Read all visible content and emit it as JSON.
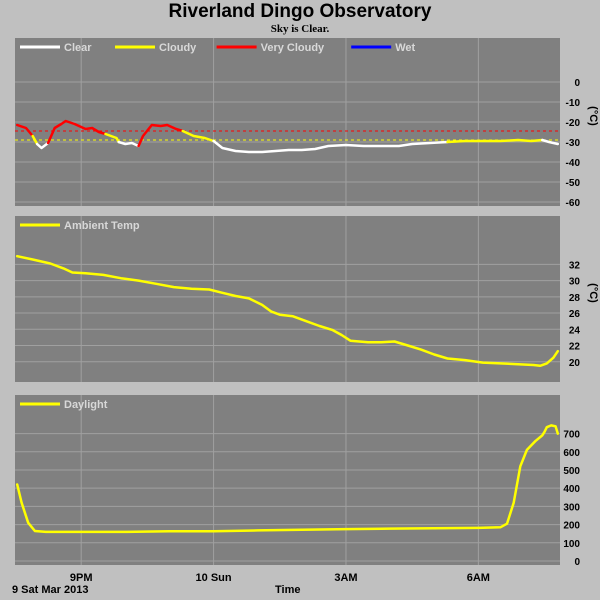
{
  "page": {
    "title": "Riverland Dingo Observatory",
    "subtitle": "Sky is Clear.",
    "date_label": "9 Sat Mar 2013",
    "xlabel": "Time"
  },
  "colors": {
    "background": "#c0c0c0",
    "panel": "#808080",
    "grid": "#a0a0a0",
    "clear": "#ffffff",
    "cloudy": "#ffff00",
    "very_cloudy": "#ff0000",
    "wet": "#0000ff"
  },
  "chart_data": [
    {
      "type": "line",
      "id": "sky",
      "ylabel": "(°C)",
      "ylim": [
        -60,
        10
      ],
      "yticks": [
        0,
        -10,
        -20,
        -30,
        -40,
        -50,
        -60
      ],
      "xlim": [
        0,
        12.35
      ],
      "xticks": [
        {
          "x": 1.5,
          "label": "9PM"
        },
        {
          "x": 4.5,
          "label": "10 Sun"
        },
        {
          "x": 7.5,
          "label": "3AM"
        },
        {
          "x": 10.5,
          "label": "6AM"
        }
      ],
      "legend": [
        "Clear",
        "Cloudy",
        "Very Cloudy",
        "Wet"
      ],
      "thresholds": [
        {
          "y": -24.5,
          "color": "#ff0000"
        },
        {
          "y": -29,
          "color": "#ffff00"
        }
      ],
      "series": [
        {
          "name": "Very Cloudy",
          "color": "#ff0000",
          "points": [
            [
              0.05,
              -21.5
            ],
            [
              0.25,
              -23
            ],
            [
              0.4,
              -27
            ]
          ]
        },
        {
          "name": "Cloudy",
          "color": "#ffff00",
          "points": [
            [
              0.4,
              -27
            ],
            [
              0.5,
              -31
            ]
          ]
        },
        {
          "name": "Clear",
          "color": "#ffffff",
          "points": [
            [
              0.5,
              -31
            ],
            [
              0.6,
              -33
            ],
            [
              0.75,
              -30.5
            ]
          ]
        },
        {
          "name": "Very Cloudy",
          "color": "#ff0000",
          "points": [
            [
              0.75,
              -30.5
            ],
            [
              0.9,
              -23
            ],
            [
              1.05,
              -21
            ],
            [
              1.15,
              -19.5
            ],
            [
              1.35,
              -21
            ],
            [
              1.5,
              -22.5
            ],
            [
              1.6,
              -23.5
            ],
            [
              1.75,
              -23
            ],
            [
              1.9,
              -25
            ],
            [
              2.05,
              -26
            ]
          ]
        },
        {
          "name": "Cloudy",
          "color": "#ffff00",
          "points": [
            [
              2.05,
              -26
            ],
            [
              2.3,
              -28
            ],
            [
              2.35,
              -30
            ]
          ]
        },
        {
          "name": "Clear",
          "color": "#ffffff",
          "points": [
            [
              2.35,
              -30
            ],
            [
              2.5,
              -31
            ],
            [
              2.65,
              -30.5
            ],
            [
              2.8,
              -32
            ]
          ]
        },
        {
          "name": "Very Cloudy",
          "color": "#ff0000",
          "points": [
            [
              2.8,
              -32
            ],
            [
              2.9,
              -27
            ],
            [
              3.1,
              -21.5
            ],
            [
              3.3,
              -22
            ],
            [
              3.45,
              -21.5
            ],
            [
              3.65,
              -23.5
            ],
            [
              3.8,
              -24.5
            ]
          ]
        },
        {
          "name": "Cloudy",
          "color": "#ffff00",
          "points": [
            [
              3.8,
              -24.5
            ],
            [
              4.05,
              -27
            ],
            [
              4.3,
              -28
            ],
            [
              4.5,
              -29.5
            ]
          ]
        },
        {
          "name": "Clear",
          "color": "#ffffff",
          "points": [
            [
              4.5,
              -29.5
            ],
            [
              4.7,
              -33
            ],
            [
              5.0,
              -34.5
            ],
            [
              5.3,
              -35
            ],
            [
              5.6,
              -35
            ],
            [
              5.9,
              -34.5
            ],
            [
              6.2,
              -34
            ],
            [
              6.5,
              -34
            ],
            [
              6.8,
              -33.5
            ],
            [
              7.1,
              -32
            ],
            [
              7.5,
              -31.5
            ],
            [
              7.9,
              -32
            ],
            [
              8.3,
              -32
            ],
            [
              8.7,
              -32
            ],
            [
              9.0,
              -31
            ],
            [
              9.4,
              -30.5
            ],
            [
              9.8,
              -30
            ]
          ]
        },
        {
          "name": "Cloudy",
          "color": "#ffff00",
          "points": [
            [
              9.8,
              -30
            ],
            [
              10.2,
              -29.5
            ],
            [
              10.6,
              -29.5
            ],
            [
              11.0,
              -29.5
            ],
            [
              11.4,
              -29
            ],
            [
              11.7,
              -29.5
            ],
            [
              11.95,
              -29
            ]
          ]
        },
        {
          "name": "Clear",
          "color": "#ffffff",
          "points": [
            [
              11.95,
              -29
            ],
            [
              12.1,
              -30
            ],
            [
              12.3,
              -31
            ]
          ]
        }
      ]
    },
    {
      "type": "line",
      "id": "ambient",
      "ylabel": "(°C)",
      "ylim": [
        18,
        35
      ],
      "yticks": [
        32,
        30,
        28,
        26,
        24,
        22,
        20
      ],
      "xlim": [
        0,
        12.35
      ],
      "xticks": [
        {
          "x": 1.5,
          "label": "9PM"
        },
        {
          "x": 4.5,
          "label": "10 Sun"
        },
        {
          "x": 7.5,
          "label": "3AM"
        },
        {
          "x": 10.5,
          "label": "6AM"
        }
      ],
      "legend": [
        "Ambient Temp"
      ],
      "series": [
        {
          "name": "Ambient Temp",
          "color": "#ffff00",
          "points": [
            [
              0.05,
              33.0
            ],
            [
              0.4,
              32.6
            ],
            [
              0.8,
              32.1
            ],
            [
              1.1,
              31.5
            ],
            [
              1.3,
              31.0
            ],
            [
              1.6,
              30.9
            ],
            [
              2.0,
              30.7
            ],
            [
              2.4,
              30.3
            ],
            [
              2.8,
              30.0
            ],
            [
              3.2,
              29.6
            ],
            [
              3.6,
              29.2
            ],
            [
              4.0,
              29.0
            ],
            [
              4.4,
              28.9
            ],
            [
              4.7,
              28.5
            ],
            [
              5.0,
              28.1
            ],
            [
              5.3,
              27.8
            ],
            [
              5.6,
              27.0
            ],
            [
              5.8,
              26.2
            ],
            [
              6.0,
              25.8
            ],
            [
              6.3,
              25.6
            ],
            [
              6.6,
              25.0
            ],
            [
              6.9,
              24.4
            ],
            [
              7.2,
              23.9
            ],
            [
              7.4,
              23.3
            ],
            [
              7.6,
              22.6
            ],
            [
              7.8,
              22.5
            ],
            [
              8.0,
              22.4
            ],
            [
              8.3,
              22.4
            ],
            [
              8.6,
              22.5
            ],
            [
              8.9,
              22.0
            ],
            [
              9.2,
              21.5
            ],
            [
              9.5,
              20.9
            ],
            [
              9.8,
              20.4
            ],
            [
              10.2,
              20.2
            ],
            [
              10.6,
              19.9
            ],
            [
              11.0,
              19.8
            ],
            [
              11.4,
              19.7
            ],
            [
              11.75,
              19.6
            ],
            [
              11.9,
              19.5
            ],
            [
              12.05,
              19.8
            ],
            [
              12.2,
              20.5
            ],
            [
              12.3,
              21.3
            ]
          ]
        }
      ]
    },
    {
      "type": "line",
      "id": "daylight",
      "ylim": [
        0,
        780
      ],
      "yticks": [
        700,
        600,
        500,
        400,
        300,
        200,
        100,
        0
      ],
      "xlim": [
        0,
        12.35
      ],
      "xticks": [
        {
          "x": 1.5,
          "label": "9PM"
        },
        {
          "x": 4.5,
          "label": "10 Sun"
        },
        {
          "x": 7.5,
          "label": "3AM"
        },
        {
          "x": 10.5,
          "label": "6AM"
        }
      ],
      "legend": [
        "Daylight"
      ],
      "series": [
        {
          "name": "Daylight",
          "color": "#ffff00",
          "points": [
            [
              0.05,
              420
            ],
            [
              0.15,
              320
            ],
            [
              0.3,
              210
            ],
            [
              0.45,
              165
            ],
            [
              0.7,
              160
            ],
            [
              1.5,
              160
            ],
            [
              2.5,
              160
            ],
            [
              3.5,
              163
            ],
            [
              4.5,
              163
            ],
            [
              5.5,
              168
            ],
            [
              6.5,
              172
            ],
            [
              7.5,
              175
            ],
            [
              8.5,
              178
            ],
            [
              9.5,
              180
            ],
            [
              10.5,
              182
            ],
            [
              11.0,
              185
            ],
            [
              11.15,
              205
            ],
            [
              11.3,
              320
            ],
            [
              11.45,
              520
            ],
            [
              11.6,
              610
            ],
            [
              11.8,
              660
            ],
            [
              11.95,
              690
            ],
            [
              12.0,
              710
            ],
            [
              12.05,
              735
            ],
            [
              12.15,
              745
            ],
            [
              12.25,
              740
            ],
            [
              12.3,
              700
            ]
          ]
        }
      ]
    }
  ]
}
